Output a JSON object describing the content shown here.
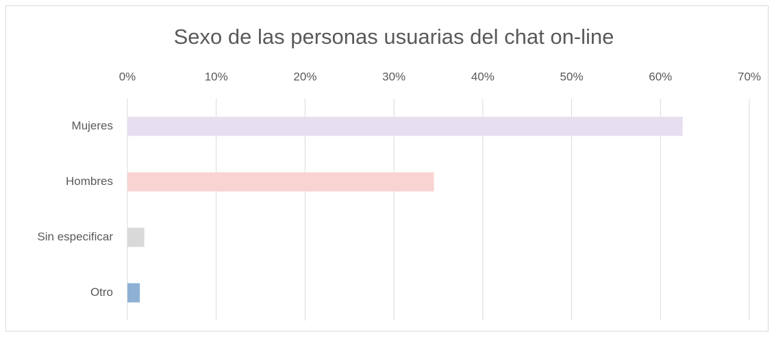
{
  "chart_data": {
    "type": "bar",
    "orientation": "horizontal",
    "title": "Sexo de las personas usuarias del chat on-line",
    "categories": [
      "Mujeres",
      "Hombres",
      "Sin especificar",
      "Otro"
    ],
    "values": [
      62.5,
      34.5,
      1.9,
      1.4
    ],
    "colors": [
      "#e6dff0",
      "#f9d3d2",
      "#d9d9d9",
      "#8eb0d5"
    ],
    "xlim": [
      0,
      70
    ],
    "xticks": [
      {
        "value": 0,
        "label": "0%"
      },
      {
        "value": 10,
        "label": "10%"
      },
      {
        "value": 20,
        "label": "20%"
      },
      {
        "value": 30,
        "label": "30%"
      },
      {
        "value": 40,
        "label": "40%"
      },
      {
        "value": 50,
        "label": "50%"
      },
      {
        "value": 60,
        "label": "60%"
      },
      {
        "value": 70,
        "label": "70%"
      }
    ],
    "grid": true
  }
}
